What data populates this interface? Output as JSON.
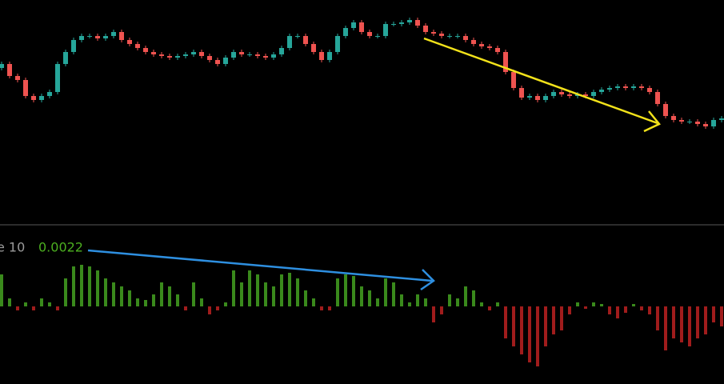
{
  "chart_data": [
    {
      "type": "candlestick",
      "up_color": "#26a69a",
      "down_color": "#ef5350",
      "ylim": [
        0,
        280
      ],
      "open": [
        195,
        200,
        185,
        180,
        160,
        155,
        160,
        165,
        200,
        215,
        230,
        235,
        235,
        232,
        235,
        240,
        230,
        225,
        220,
        215,
        212,
        210,
        208,
        210,
        212,
        215,
        210,
        205,
        200,
        208,
        215,
        212,
        212,
        210,
        208,
        212,
        220,
        235,
        235,
        225,
        215,
        205,
        215,
        235,
        245,
        252,
        240,
        235,
        235,
        250,
        250,
        252,
        255,
        248,
        240,
        238,
        235,
        235,
        235,
        230,
        225,
        222,
        220,
        215,
        190,
        170,
        158,
        160,
        155,
        160,
        165,
        162,
        160,
        162,
        160,
        165,
        168,
        170,
        172,
        170,
        172,
        170,
        165,
        150,
        135,
        130,
        128,
        128,
        125,
        122,
        130
      ],
      "high": [
        203,
        203,
        188,
        183,
        163,
        163,
        168,
        203,
        218,
        233,
        238,
        238,
        238,
        238,
        243,
        243,
        233,
        228,
        223,
        218,
        215,
        213,
        213,
        215,
        218,
        218,
        213,
        208,
        211,
        218,
        218,
        215,
        215,
        213,
        215,
        223,
        238,
        238,
        238,
        228,
        218,
        218,
        238,
        248,
        255,
        255,
        243,
        238,
        253,
        253,
        255,
        258,
        258,
        251,
        243,
        241,
        238,
        238,
        238,
        233,
        228,
        225,
        223,
        218,
        193,
        173,
        163,
        163,
        163,
        168,
        168,
        165,
        165,
        165,
        168,
        171,
        173,
        175,
        175,
        175,
        175,
        173,
        168,
        153,
        138,
        133,
        131,
        131,
        128,
        133,
        135
      ],
      "low": [
        192,
        182,
        177,
        157,
        152,
        152,
        157,
        162,
        197,
        212,
        227,
        232,
        229,
        229,
        232,
        227,
        222,
        217,
        212,
        209,
        207,
        205,
        205,
        207,
        209,
        207,
        202,
        197,
        197,
        205,
        209,
        209,
        207,
        205,
        205,
        209,
        217,
        232,
        222,
        212,
        202,
        202,
        212,
        232,
        242,
        237,
        232,
        232,
        232,
        247,
        247,
        249,
        245,
        237,
        235,
        232,
        232,
        232,
        227,
        222,
        219,
        217,
        212,
        187,
        167,
        155,
        155,
        152,
        152,
        157,
        159,
        157,
        157,
        157,
        157,
        162,
        165,
        167,
        167,
        167,
        167,
        162,
        147,
        132,
        127,
        125,
        125,
        122,
        119,
        119,
        127
      ],
      "close": [
        200,
        185,
        180,
        160,
        155,
        160,
        165,
        200,
        215,
        230,
        235,
        235,
        232,
        235,
        240,
        230,
        225,
        220,
        215,
        212,
        210,
        208,
        210,
        212,
        215,
        210,
        205,
        200,
        208,
        215,
        212,
        212,
        210,
        208,
        212,
        220,
        235,
        235,
        225,
        215,
        205,
        215,
        235,
        245,
        252,
        240,
        235,
        235,
        250,
        250,
        252,
        255,
        248,
        240,
        238,
        235,
        235,
        235,
        230,
        225,
        222,
        220,
        215,
        190,
        170,
        158,
        160,
        155,
        160,
        165,
        162,
        160,
        162,
        160,
        165,
        168,
        170,
        172,
        170,
        172,
        170,
        165,
        150,
        135,
        130,
        128,
        128,
        125,
        122,
        130,
        132
      ]
    },
    {
      "type": "bar",
      "title": "e 10",
      "legend_value": 0.0022,
      "legend_color": "#4caf20",
      "up_color": "#3a8a1c",
      "down_color": "#a01c1c",
      "ylim": [
        -0.00485,
        0.0049
      ],
      "values": [
        0.002,
        0.0005,
        -0.00025,
        0.00025,
        -0.00025,
        0.0005,
        0.00025,
        -0.00025,
        0.00175,
        0.0025,
        0.0026,
        0.0025,
        0.00225,
        0.00175,
        0.0015,
        0.00125,
        0.001,
        0.0005,
        0.0004,
        0.00075,
        0.0015,
        0.00125,
        0.00075,
        -0.00025,
        0.0015,
        0.0005,
        -0.0005,
        -0.00025,
        0.00025,
        0.00225,
        0.0015,
        0.00225,
        0.002,
        0.0015,
        0.00125,
        0.002,
        0.0021,
        0.00175,
        0.001,
        0.0005,
        -0.00025,
        -0.00025,
        0.00175,
        0.002,
        0.0019,
        0.00125,
        0.001,
        0.0005,
        0.00175,
        0.0015,
        0.00075,
        0.00025,
        0.00075,
        0.0005,
        -0.001,
        -0.0005,
        0.00075,
        0.0005,
        0.00125,
        0.001,
        0.00025,
        -0.00025,
        0.00025,
        -0.002,
        -0.0025,
        -0.003,
        -0.0035,
        -0.00375,
        -0.0025,
        -0.00175,
        -0.0015,
        -0.0005,
        0.00025,
        -0.00015,
        0.00025,
        0.00015,
        -0.0005,
        -0.00075,
        -0.0004,
        0.00015,
        -0.00025,
        -0.0005,
        -0.0015,
        -0.00275,
        -0.002,
        -0.00225,
        -0.0025,
        -0.002,
        -0.00175,
        -0.001,
        -0.00125
      ]
    }
  ]
}
